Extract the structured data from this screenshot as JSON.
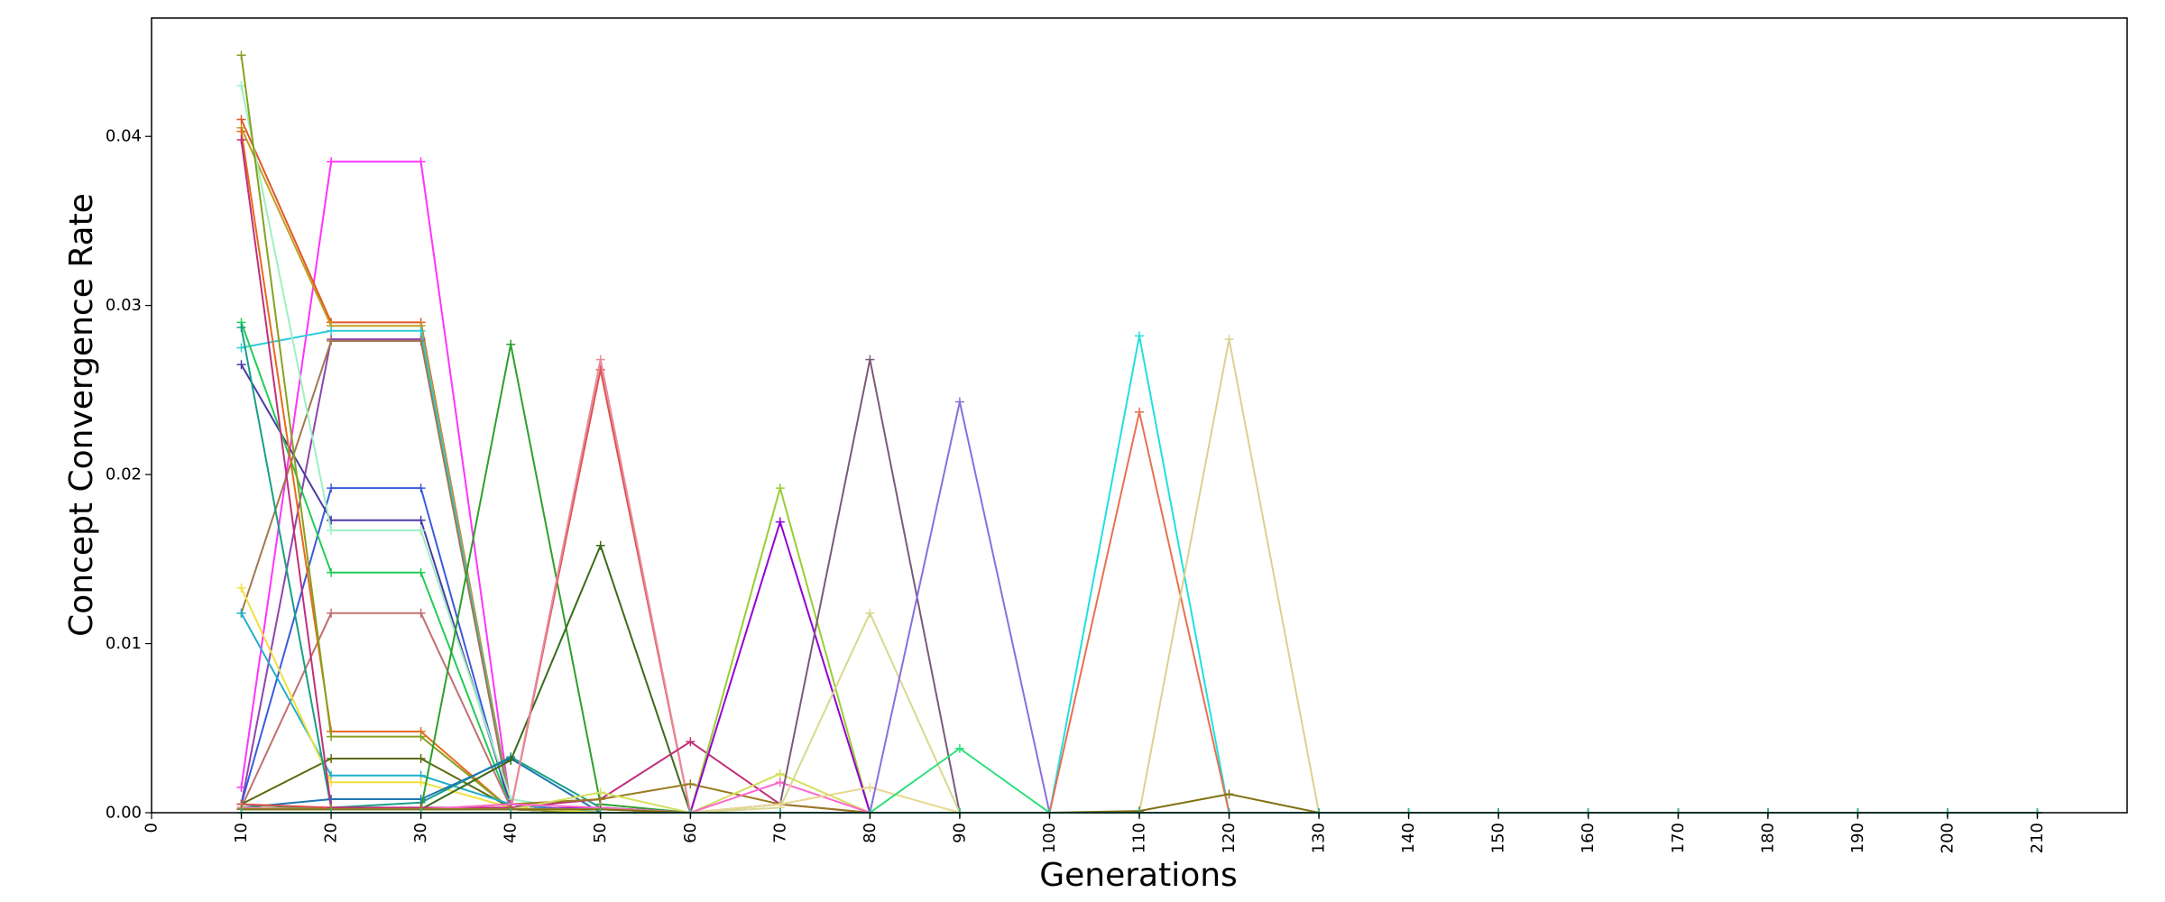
{
  "chart_data": {
    "type": "line",
    "title": "",
    "xlabel": "Generations",
    "ylabel": "Concept Convergence Rate",
    "xlim": [
      0,
      220
    ],
    "ylim": [
      0,
      0.047
    ],
    "xticks": [
      0,
      10,
      20,
      30,
      40,
      50,
      60,
      70,
      80,
      90,
      100,
      110,
      120,
      130,
      140,
      150,
      160,
      170,
      180,
      190,
      200,
      210
    ],
    "yticks": [
      0.0,
      0.01,
      0.02,
      0.03,
      0.04
    ],
    "ytick_labels": [
      "0.00",
      "0.01",
      "0.02",
      "0.03",
      "0.04"
    ],
    "grid": false,
    "legend": "none",
    "marker": "+",
    "x": [
      10,
      20,
      30,
      40,
      50,
      60,
      70,
      80,
      90,
      100,
      110,
      120,
      130,
      140,
      150,
      160,
      170,
      180,
      190,
      200,
      210
    ],
    "series": [
      {
        "color": "#ff33ff",
        "values": [
          0.0015,
          0.0385,
          0.0385,
          0.0003,
          0.0,
          0.0,
          0.0,
          0.0,
          0.0,
          0.0,
          0.0,
          0.0,
          0.0,
          0.0,
          0.0,
          0.0,
          0.0,
          0.0,
          0.0,
          0.0,
          0.0
        ]
      },
      {
        "color": "#e0572a",
        "values": [
          0.041,
          0.029,
          0.029,
          0.0005,
          0.0,
          0.0,
          0.0,
          0.0,
          0.0,
          0.0,
          0.0,
          0.0,
          0.0,
          0.0,
          0.0,
          0.0,
          0.0,
          0.0,
          0.0,
          0.0,
          0.0
        ]
      },
      {
        "color": "#c0a020",
        "values": [
          0.0405,
          0.0288,
          0.0288,
          0.0005,
          0.0,
          0.0,
          0.0,
          0.0,
          0.0,
          0.0,
          0.0,
          0.0,
          0.0,
          0.0,
          0.0,
          0.0,
          0.0,
          0.0,
          0.0,
          0.0,
          0.0
        ]
      },
      {
        "color": "#8e44ad",
        "values": [
          0.0005,
          0.028,
          0.028,
          0.0002,
          0.0,
          0.0,
          0.0,
          0.0,
          0.0,
          0.0,
          0.0,
          0.0,
          0.0,
          0.0,
          0.0,
          0.0,
          0.0,
          0.0,
          0.0,
          0.0,
          0.0
        ]
      },
      {
        "color": "#2ecbd8",
        "values": [
          0.0275,
          0.0285,
          0.0285,
          0.0003,
          0.0,
          0.0,
          0.0,
          0.0,
          0.0,
          0.0,
          0.0,
          0.0,
          0.0,
          0.0,
          0.0,
          0.0,
          0.0,
          0.0,
          0.0,
          0.0,
          0.0
        ]
      },
      {
        "color": "#a07850",
        "values": [
          0.0118,
          0.0279,
          0.0279,
          0.0002,
          0.0,
          0.0,
          0.0,
          0.0,
          0.0,
          0.0,
          0.0,
          0.0,
          0.0,
          0.0,
          0.0,
          0.0,
          0.0,
          0.0,
          0.0,
          0.0,
          0.0
        ]
      },
      {
        "color": "#3b5bdb",
        "values": [
          0.0005,
          0.0192,
          0.0192,
          0.0002,
          0.0,
          0.0,
          0.0,
          0.0,
          0.0,
          0.0,
          0.0,
          0.0,
          0.0,
          0.0,
          0.0,
          0.0,
          0.0,
          0.0,
          0.0,
          0.0,
          0.0
        ]
      },
      {
        "color": "#4a3aa8",
        "values": [
          0.0265,
          0.0173,
          0.0173,
          0.0005,
          0.0,
          0.0,
          0.0,
          0.0,
          0.0,
          0.0,
          0.0,
          0.0,
          0.0,
          0.0,
          0.0,
          0.0,
          0.0,
          0.0,
          0.0,
          0.0,
          0.0
        ]
      },
      {
        "color": "#9ef0c0",
        "values": [
          0.043,
          0.0167,
          0.0167,
          0.0008,
          0.0,
          0.0,
          0.0,
          0.0,
          0.0,
          0.0,
          0.0,
          0.0,
          0.0,
          0.0,
          0.0,
          0.0,
          0.0,
          0.0,
          0.0,
          0.0,
          0.0
        ]
      },
      {
        "color": "#22cc55",
        "values": [
          0.029,
          0.0142,
          0.0142,
          0.0003,
          0.0,
          0.0,
          0.0,
          0.0,
          0.0,
          0.0,
          0.0,
          0.0,
          0.0,
          0.0,
          0.0,
          0.0,
          0.0,
          0.0,
          0.0,
          0.0,
          0.0
        ]
      },
      {
        "color": "#c07070",
        "values": [
          0.0003,
          0.0118,
          0.0118,
          0.0003,
          0.0,
          0.0,
          0.0,
          0.0,
          0.0,
          0.0,
          0.0,
          0.0,
          0.0,
          0.0,
          0.0,
          0.0,
          0.0,
          0.0,
          0.0,
          0.0,
          0.0
        ]
      },
      {
        "color": "#e86a1c",
        "values": [
          0.0403,
          0.0048,
          0.0048,
          0.0002,
          0.0,
          0.0,
          0.0,
          0.0,
          0.0,
          0.0,
          0.0,
          0.0,
          0.0,
          0.0,
          0.0,
          0.0,
          0.0,
          0.0,
          0.0,
          0.0,
          0.0
        ]
      },
      {
        "color": "#88a020",
        "values": [
          0.0448,
          0.0045,
          0.0045,
          0.0002,
          0.0,
          0.0,
          0.0,
          0.0,
          0.0,
          0.0,
          0.0,
          0.0,
          0.0,
          0.0,
          0.0,
          0.0,
          0.0,
          0.0,
          0.0,
          0.0,
          0.0
        ]
      },
      {
        "color": "#5c6a10",
        "values": [
          0.0005,
          0.0032,
          0.0032,
          0.0003,
          0.0,
          0.0,
          0.0,
          0.0,
          0.0,
          0.0,
          0.0,
          0.0,
          0.0,
          0.0,
          0.0,
          0.0,
          0.0,
          0.0,
          0.0,
          0.0,
          0.0
        ]
      },
      {
        "color": "#1fb0c8",
        "values": [
          0.0118,
          0.0022,
          0.0022,
          0.0005,
          0.0,
          0.0,
          0.0,
          0.0,
          0.0,
          0.0,
          0.0,
          0.0,
          0.0,
          0.0,
          0.0,
          0.0,
          0.0,
          0.0,
          0.0,
          0.0,
          0.0
        ]
      },
      {
        "color": "#f0e040",
        "values": [
          0.0133,
          0.0018,
          0.0018,
          0.0003,
          0.0,
          0.0,
          0.0,
          0.0,
          0.0,
          0.0,
          0.0,
          0.0,
          0.0,
          0.0,
          0.0,
          0.0,
          0.0,
          0.0,
          0.0,
          0.0,
          0.0
        ]
      },
      {
        "color": "#16a085",
        "values": [
          0.0287,
          0.0003,
          0.0006,
          0.0033,
          0.0003,
          0.0,
          0.0,
          0.0,
          0.0,
          0.0,
          0.0,
          0.0,
          0.0,
          0.0,
          0.0,
          0.0,
          0.0,
          0.0,
          0.0,
          0.0,
          0.0
        ]
      },
      {
        "color": "#1f77b4",
        "values": [
          0.0003,
          0.0008,
          0.0008,
          0.0032,
          0.0,
          0.0,
          0.0,
          0.0,
          0.0,
          0.0,
          0.0,
          0.0,
          0.0,
          0.0,
          0.0,
          0.0,
          0.0,
          0.0,
          0.0,
          0.0,
          0.0
        ]
      },
      {
        "color": "#2ca02c",
        "values": [
          0.0005,
          0.0002,
          0.0002,
          0.0277,
          0.0005,
          0.0,
          0.0,
          0.0,
          0.0,
          0.0,
          0.0,
          0.0,
          0.0,
          0.0,
          0.0,
          0.0,
          0.0,
          0.0,
          0.0,
          0.0,
          0.0
        ]
      },
      {
        "color": "#3a6b1a",
        "values": [
          0.0003,
          0.0002,
          0.0002,
          0.0031,
          0.0158,
          0.0,
          0.0,
          0.0,
          0.0,
          0.0,
          0.0,
          0.0,
          0.0,
          0.0,
          0.0,
          0.0,
          0.0,
          0.0,
          0.0,
          0.0,
          0.0
        ]
      },
      {
        "color": "#e05050",
        "values": [
          0.0005,
          0.0003,
          0.0003,
          0.0002,
          0.0262,
          0.0,
          0.0,
          0.0,
          0.0,
          0.0,
          0.0,
          0.0,
          0.0,
          0.0,
          0.0,
          0.0,
          0.0,
          0.0,
          0.0,
          0.0,
          0.0
        ]
      },
      {
        "color": "#e88a9a",
        "values": [
          0.0003,
          0.0002,
          0.0002,
          0.0002,
          0.0268,
          0.0,
          0.0,
          0.0,
          0.0,
          0.0,
          0.0,
          0.0,
          0.0,
          0.0,
          0.0,
          0.0,
          0.0,
          0.0,
          0.0,
          0.0,
          0.0
        ]
      },
      {
        "color": "#c0307a",
        "values": [
          0.0398,
          0.0003,
          0.0003,
          0.0003,
          0.0008,
          0.0042,
          0.0005,
          0.0,
          0.0,
          0.0,
          0.0,
          0.0,
          0.0,
          0.0,
          0.0,
          0.0,
          0.0,
          0.0,
          0.0,
          0.0,
          0.0
        ]
      },
      {
        "color": "#9a7a20",
        "values": [
          0.0002,
          0.0002,
          0.0002,
          0.0005,
          0.0008,
          0.0017,
          0.0005,
          0.0,
          0.0,
          0.0,
          0.0,
          0.0,
          0.0,
          0.0,
          0.0,
          0.0,
          0.0,
          0.0,
          0.0,
          0.0,
          0.0
        ]
      },
      {
        "color": "#9acd32",
        "values": [
          0.0002,
          0.0002,
          0.0002,
          0.0002,
          0.0003,
          0.0,
          0.0192,
          0.0,
          0.0,
          0.0,
          0.0,
          0.0,
          0.0,
          0.0,
          0.0,
          0.0,
          0.0,
          0.0,
          0.0,
          0.0,
          0.0
        ]
      },
      {
        "color": "#9400d3",
        "values": [
          0.0002,
          0.0002,
          0.0002,
          0.0002,
          0.0003,
          0.0,
          0.0172,
          0.0,
          0.0,
          0.0,
          0.0,
          0.0,
          0.0,
          0.0,
          0.0,
          0.0,
          0.0,
          0.0,
          0.0,
          0.0,
          0.0
        ]
      },
      {
        "color": "#d4e060",
        "values": [
          0.0002,
          0.0002,
          0.0002,
          0.0002,
          0.0012,
          0.0,
          0.0023,
          0.0,
          0.0,
          0.0,
          0.0,
          0.0,
          0.0,
          0.0,
          0.0,
          0.0,
          0.0,
          0.0,
          0.0,
          0.0,
          0.0
        ]
      },
      {
        "color": "#ff66cc",
        "values": [
          0.0002,
          0.0002,
          0.0002,
          0.0005,
          0.0003,
          0.0,
          0.0018,
          0.0,
          0.0,
          0.0,
          0.0,
          0.0,
          0.0,
          0.0,
          0.0,
          0.0,
          0.0,
          0.0,
          0.0,
          0.0,
          0.0
        ]
      },
      {
        "color": "#7a5a7a",
        "values": [
          0.0002,
          0.0002,
          0.0002,
          0.0002,
          0.0002,
          0.0,
          0.0005,
          0.0268,
          0.0,
          0.0,
          0.0,
          0.0,
          0.0,
          0.0,
          0.0,
          0.0,
          0.0,
          0.0,
          0.0,
          0.0,
          0.0
        ]
      },
      {
        "color": "#d8d890",
        "values": [
          0.0002,
          0.0002,
          0.0002,
          0.0002,
          0.0002,
          0.0,
          0.0003,
          0.0118,
          0.0,
          0.0,
          0.0,
          0.0,
          0.0,
          0.0,
          0.0,
          0.0,
          0.0,
          0.0,
          0.0,
          0.0,
          0.0
        ]
      },
      {
        "color": "#e8d890",
        "values": [
          0.0002,
          0.0002,
          0.0002,
          0.0002,
          0.0002,
          0.0,
          0.0005,
          0.0015,
          0.0,
          0.0,
          0.0,
          0.0,
          0.0,
          0.0,
          0.0,
          0.0,
          0.0,
          0.0,
          0.0,
          0.0,
          0.0
        ]
      },
      {
        "color": "#8a6ee0",
        "values": [
          0.0002,
          0.0002,
          0.0002,
          0.0002,
          0.0002,
          0.0,
          0.0,
          0.0,
          0.0243,
          0.0,
          0.0,
          0.0,
          0.0,
          0.0,
          0.0,
          0.0,
          0.0,
          0.0,
          0.0,
          0.0,
          0.0
        ]
      },
      {
        "color": "#2ee07a",
        "values": [
          0.0002,
          0.0002,
          0.0002,
          0.0002,
          0.0002,
          0.0,
          0.0,
          0.0,
          0.0038,
          0.0,
          0.0,
          0.0,
          0.0,
          0.0,
          0.0,
          0.0,
          0.0,
          0.0,
          0.0,
          0.0,
          0.0
        ]
      },
      {
        "color": "#20e0e0",
        "values": [
          0.0002,
          0.0002,
          0.0002,
          0.0002,
          0.0002,
          0.0,
          0.0,
          0.0,
          0.0,
          0.0,
          0.0282,
          0.0,
          0.0,
          0.0,
          0.0,
          0.0,
          0.0,
          0.0,
          0.0,
          0.0,
          0.0
        ]
      },
      {
        "color": "#e87050",
        "values": [
          0.0002,
          0.0002,
          0.0002,
          0.0002,
          0.0002,
          0.0,
          0.0,
          0.0,
          0.0,
          0.0,
          0.0237,
          0.0,
          0.0,
          0.0,
          0.0,
          0.0,
          0.0,
          0.0,
          0.0,
          0.0,
          0.0
        ]
      },
      {
        "color": "#ddd090",
        "values": [
          0.0002,
          0.0002,
          0.0002,
          0.0002,
          0.0002,
          0.0,
          0.0,
          0.0,
          0.0,
          0.0,
          0.0,
          0.028,
          0.0,
          0.0,
          0.0,
          0.0,
          0.0,
          0.0,
          0.0,
          0.0,
          0.0
        ]
      },
      {
        "color": "#807010",
        "values": [
          0.0002,
          0.0002,
          0.0002,
          0.0002,
          0.0002,
          0.0,
          0.0,
          0.0,
          0.0,
          0.0,
          0.0001,
          0.0011,
          0.0,
          0.0,
          0.0,
          0.0,
          0.0,
          0.0,
          0.0,
          0.0,
          0.0
        ]
      },
      {
        "color": "#20c0a0",
        "values": [
          0.0,
          0.0,
          0.0,
          0.0,
          0.0,
          0.0,
          0.0,
          0.0,
          0.0,
          0.0,
          0.0,
          0.0,
          0.0,
          0.0,
          0.0,
          0.0,
          0.0,
          0.0,
          0.0,
          0.0,
          0.0
        ]
      }
    ]
  }
}
